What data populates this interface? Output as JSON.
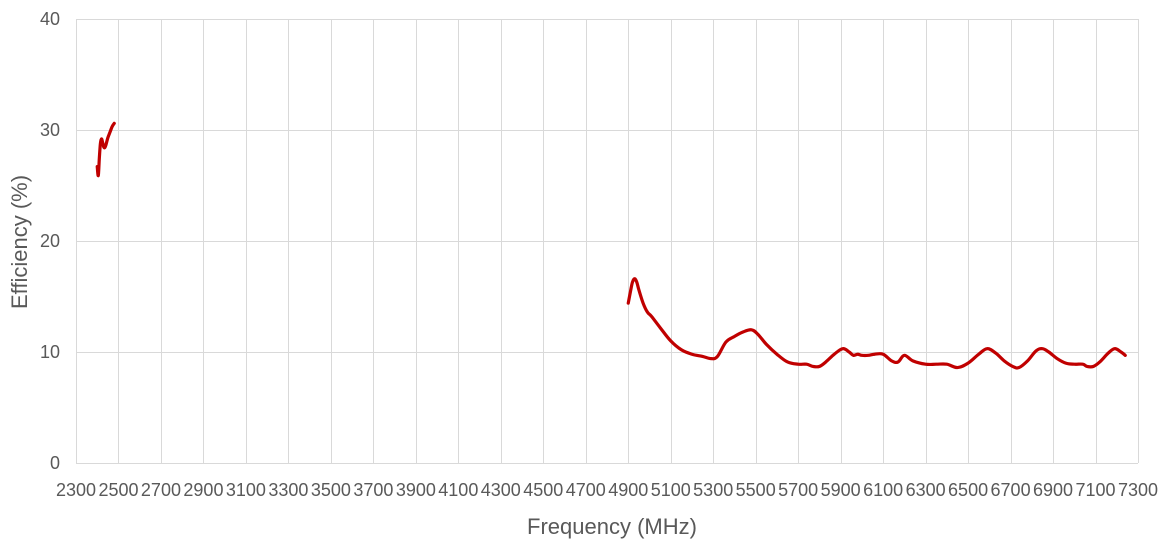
{
  "chart_data": {
    "type": "line",
    "title": "",
    "xlabel": "Frequency (MHz)",
    "ylabel": "Efficiency (%)",
    "xlim": [
      2300,
      7300
    ],
    "ylim": [
      0,
      40
    ],
    "x_ticks": [
      2300,
      2500,
      2700,
      2900,
      3100,
      3300,
      3500,
      3700,
      3900,
      4100,
      4300,
      4500,
      4700,
      4900,
      5100,
      5300,
      5500,
      5700,
      5900,
      6100,
      6300,
      6500,
      6700,
      6900,
      7100,
      7300
    ],
    "x_tick_labels": [
      "2300",
      "2500",
      "2700",
      "2900",
      "3100",
      "3300",
      "3500",
      "3700",
      "3900",
      "4100",
      "4300",
      "4500",
      "4700",
      "4900",
      "5100",
      "5300",
      "5500",
      "5700",
      "5900",
      "6100",
      "6300",
      "6500",
      "6700",
      "6900",
      "7100",
      "7300"
    ],
    "y_ticks": [
      0,
      10,
      20,
      30,
      40
    ],
    "y_tick_labels": [
      "0",
      "10",
      "20",
      "30",
      "40"
    ],
    "grid": true,
    "legend": "none",
    "series": [
      {
        "color": "#c00000",
        "segments": [
          [
            [
              2400,
              26.7
            ],
            [
              2405,
              25.9
            ],
            [
              2410,
              27.5
            ],
            [
              2415,
              28.8
            ],
            [
              2420,
              29.2
            ],
            [
              2425,
              28.9
            ],
            [
              2430,
              28.5
            ],
            [
              2435,
              28.4
            ],
            [
              2440,
              28.6
            ],
            [
              2450,
              29.3
            ],
            [
              2460,
              29.8
            ],
            [
              2470,
              30.3
            ],
            [
              2480,
              30.6
            ]
          ],
          [
            [
              4900,
              14.4
            ],
            [
              4910,
              15.4
            ],
            [
              4920,
              16.3
            ],
            [
              4930,
              16.6
            ],
            [
              4940,
              16.3
            ],
            [
              4950,
              15.6
            ],
            [
              4970,
              14.4
            ],
            [
              4990,
              13.6
            ],
            [
              5010,
              13.2
            ],
            [
              5050,
              12.2
            ],
            [
              5100,
              11.0
            ],
            [
              5150,
              10.2
            ],
            [
              5200,
              9.8
            ],
            [
              5250,
              9.6
            ],
            [
              5290,
              9.4
            ],
            [
              5320,
              9.6
            ],
            [
              5360,
              10.9
            ],
            [
              5400,
              11.4
            ],
            [
              5440,
              11.8
            ],
            [
              5480,
              12.0
            ],
            [
              5510,
              11.6
            ],
            [
              5550,
              10.7
            ],
            [
              5600,
              9.8
            ],
            [
              5650,
              9.1
            ],
            [
              5700,
              8.9
            ],
            [
              5740,
              8.9
            ],
            [
              5770,
              8.7
            ],
            [
              5800,
              8.7
            ],
            [
              5830,
              9.1
            ],
            [
              5870,
              9.8
            ],
            [
              5910,
              10.3
            ],
            [
              5940,
              10.0
            ],
            [
              5960,
              9.7
            ],
            [
              5980,
              9.8
            ],
            [
              6000,
              9.7
            ],
            [
              6030,
              9.7
            ],
            [
              6060,
              9.8
            ],
            [
              6100,
              9.8
            ],
            [
              6140,
              9.2
            ],
            [
              6170,
              9.1
            ],
            [
              6200,
              9.7
            ],
            [
              6240,
              9.2
            ],
            [
              6300,
              8.9
            ],
            [
              6350,
              8.9
            ],
            [
              6400,
              8.9
            ],
            [
              6450,
              8.6
            ],
            [
              6500,
              9.0
            ],
            [
              6550,
              9.8
            ],
            [
              6590,
              10.3
            ],
            [
              6630,
              9.9
            ],
            [
              6670,
              9.2
            ],
            [
              6710,
              8.7
            ],
            [
              6740,
              8.6
            ],
            [
              6780,
              9.2
            ],
            [
              6820,
              10.1
            ],
            [
              6850,
              10.3
            ],
            [
              6880,
              10.0
            ],
            [
              6920,
              9.4
            ],
            [
              6960,
              9.0
            ],
            [
              7000,
              8.9
            ],
            [
              7040,
              8.9
            ],
            [
              7060,
              8.7
            ],
            [
              7090,
              8.7
            ],
            [
              7120,
              9.1
            ],
            [
              7160,
              9.9
            ],
            [
              7190,
              10.3
            ],
            [
              7220,
              10.0
            ],
            [
              7240,
              9.7
            ]
          ]
        ]
      }
    ]
  }
}
